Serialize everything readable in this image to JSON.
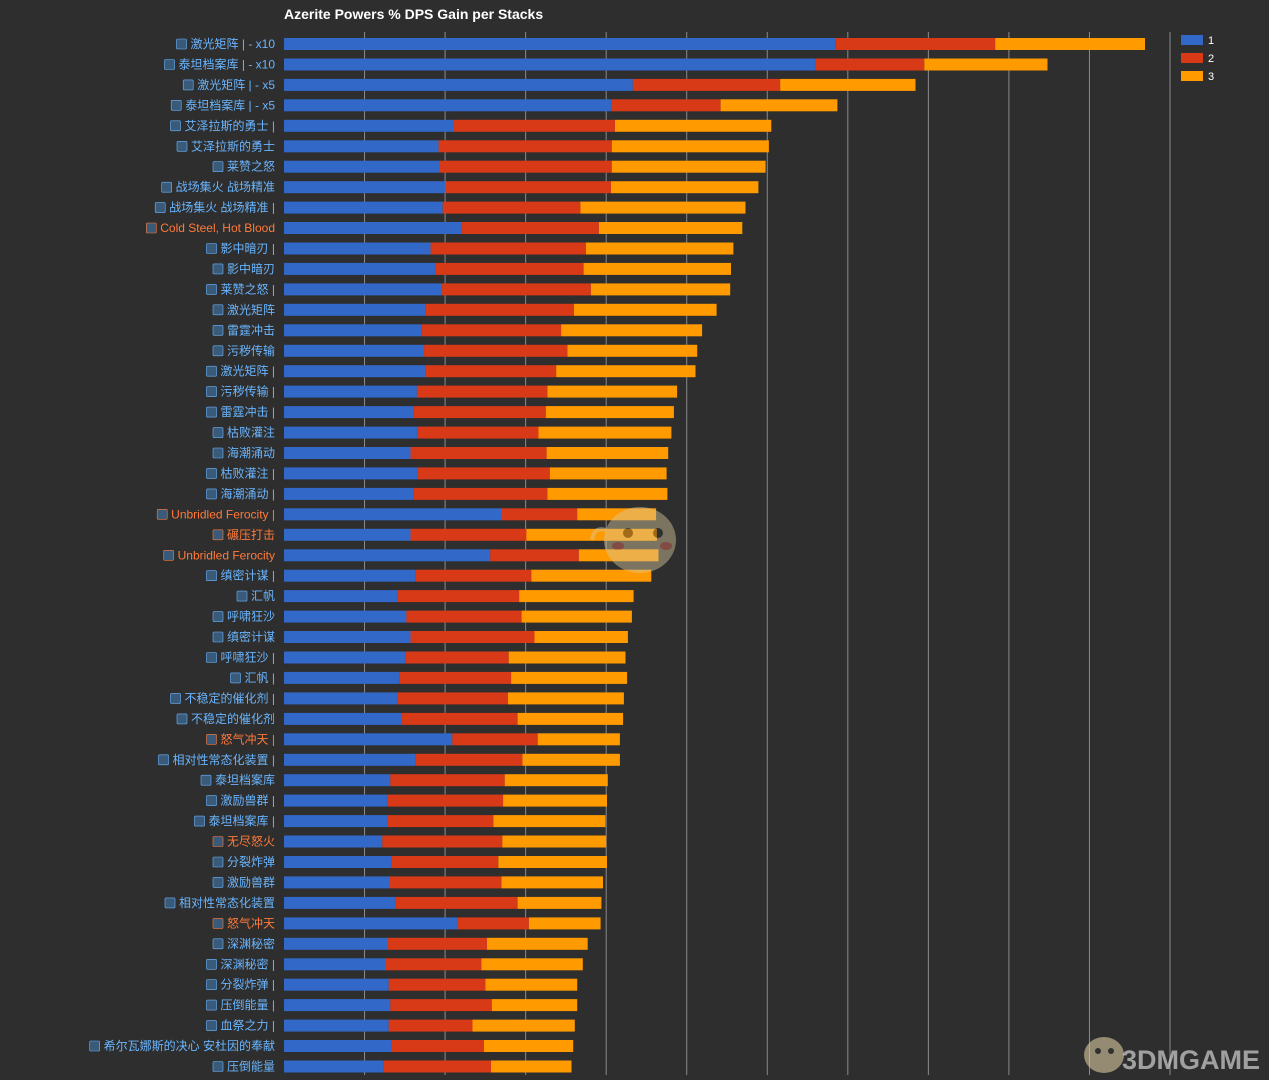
{
  "chart_data": {
    "type": "bar",
    "orientation": "horizontal",
    "stacked": true,
    "title": "Azerite Powers % DPS Gain per Stacks",
    "xlabel": "",
    "ylabel": "",
    "xlim": [
      0,
      11
    ],
    "grid": true,
    "legend_position": "top-right",
    "categories": [
      "激光矩阵 | - x10",
      "泰坦档案库 | - x10",
      "激光矩阵 | - x5",
      "泰坦档案库 | - x5",
      "艾泽拉斯的勇士 |",
      "艾泽拉斯的勇士",
      "莱赞之怒",
      "战场集火 战场精准",
      "战场集火 战场精准 |",
      "Cold Steel, Hot Blood",
      "影中暗刃 |",
      "影中暗刃",
      "莱赞之怒 |",
      "激光矩阵",
      "雷霆冲击",
      "污秽传输",
      "激光矩阵 |",
      "污秽传输 |",
      "雷霆冲击 |",
      "枯败灌注",
      "海潮涌动",
      "枯败灌注 |",
      "海潮涌动 |",
      "Unbridled Ferocity |",
      "碾压打击",
      "Unbridled Ferocity",
      "缜密计谋 |",
      "汇帆",
      "呼啸狂沙",
      "缜密计谋",
      "呼啸狂沙 |",
      "汇帆 |",
      "不稳定的催化剂 |",
      "不稳定的催化剂",
      "怒气冲天 |",
      "相对性常态化装置 |",
      "泰坦档案库",
      "激励兽群 |",
      "泰坦档案库 |",
      "无尽怒火",
      "分裂炸弹",
      "激励兽群",
      "相对性常态化装置",
      "怒气冲天",
      "深渊秘密",
      "深渊秘密 |",
      "分裂炸弹 |",
      "压倒能量 |",
      "血祭之力 |",
      "希尔瓦娜斯的决心 安杜因的奉献",
      "压倒能量"
    ],
    "series": [
      {
        "name": "1",
        "values": [
          6.85,
          6.6,
          4.33,
          4.07,
          2.11,
          1.92,
          1.93,
          2.0,
          1.97,
          2.2,
          1.82,
          1.88,
          1.95,
          1.76,
          1.71,
          1.74,
          1.76,
          1.65,
          1.61,
          1.66,
          1.57,
          1.66,
          1.61,
          2.7,
          1.57,
          2.56,
          1.63,
          1.41,
          1.52,
          1.57,
          1.51,
          1.43,
          1.41,
          1.46,
          2.09,
          1.63,
          1.32,
          1.29,
          1.28,
          1.22,
          1.34,
          1.31,
          1.38,
          2.15,
          1.28,
          1.26,
          1.3,
          1.32,
          1.3,
          1.33,
          1.24
        ]
      },
      {
        "name": "2",
        "values": [
          1.98,
          1.35,
          1.83,
          1.35,
          2.0,
          2.15,
          2.14,
          2.06,
          1.71,
          1.71,
          1.93,
          1.84,
          1.86,
          1.84,
          1.73,
          1.78,
          1.62,
          1.62,
          1.64,
          1.5,
          1.69,
          1.64,
          1.66,
          0.94,
          1.44,
          1.1,
          1.44,
          1.51,
          1.43,
          1.54,
          1.28,
          1.39,
          1.37,
          1.44,
          1.06,
          1.33,
          1.42,
          1.43,
          1.32,
          1.49,
          1.32,
          1.39,
          1.52,
          0.89,
          1.24,
          1.19,
          1.2,
          1.26,
          1.04,
          1.15,
          1.33
        ]
      },
      {
        "name": "3",
        "values": [
          1.86,
          1.53,
          1.68,
          1.45,
          1.94,
          1.95,
          1.91,
          1.83,
          2.05,
          1.78,
          1.83,
          1.83,
          1.73,
          1.77,
          1.75,
          1.61,
          1.73,
          1.61,
          1.59,
          1.65,
          1.51,
          1.45,
          1.49,
          0.98,
          1.62,
          0.99,
          1.49,
          1.42,
          1.37,
          1.16,
          1.45,
          1.44,
          1.44,
          1.31,
          1.02,
          1.21,
          1.28,
          1.29,
          1.39,
          1.29,
          1.35,
          1.26,
          1.04,
          0.89,
          1.25,
          1.26,
          1.14,
          1.06,
          1.27,
          1.11,
          1.0
        ]
      }
    ],
    "colors": [
      "#3268c8",
      "#d83a18",
      "#ff9a00"
    ]
  },
  "colors": {
    "background": "#2e2e2e",
    "grid": "#8a8a8a",
    "label_blue": "#69b5ff",
    "label_orange": "#ff7a3a"
  },
  "label_color_keys": [
    "label_blue",
    "label_blue",
    "label_blue",
    "label_blue",
    "label_blue",
    "label_blue",
    "label_blue",
    "label_blue",
    "label_blue",
    "label_orange",
    "label_blue",
    "label_blue",
    "label_blue",
    "label_blue",
    "label_blue",
    "label_blue",
    "label_blue",
    "label_blue",
    "label_blue",
    "label_blue",
    "label_blue",
    "label_blue",
    "label_blue",
    "label_orange",
    "label_orange",
    "label_orange",
    "label_blue",
    "label_blue",
    "label_blue",
    "label_blue",
    "label_blue",
    "label_blue",
    "label_blue",
    "label_blue",
    "label_orange",
    "label_blue",
    "label_blue",
    "label_blue",
    "label_blue",
    "label_orange",
    "label_blue",
    "label_blue",
    "label_blue",
    "label_orange",
    "label_blue",
    "label_blue",
    "label_blue",
    "label_blue",
    "label_blue",
    "label_blue",
    "label_blue"
  ],
  "watermark": {
    "text": "3DMGAME"
  }
}
